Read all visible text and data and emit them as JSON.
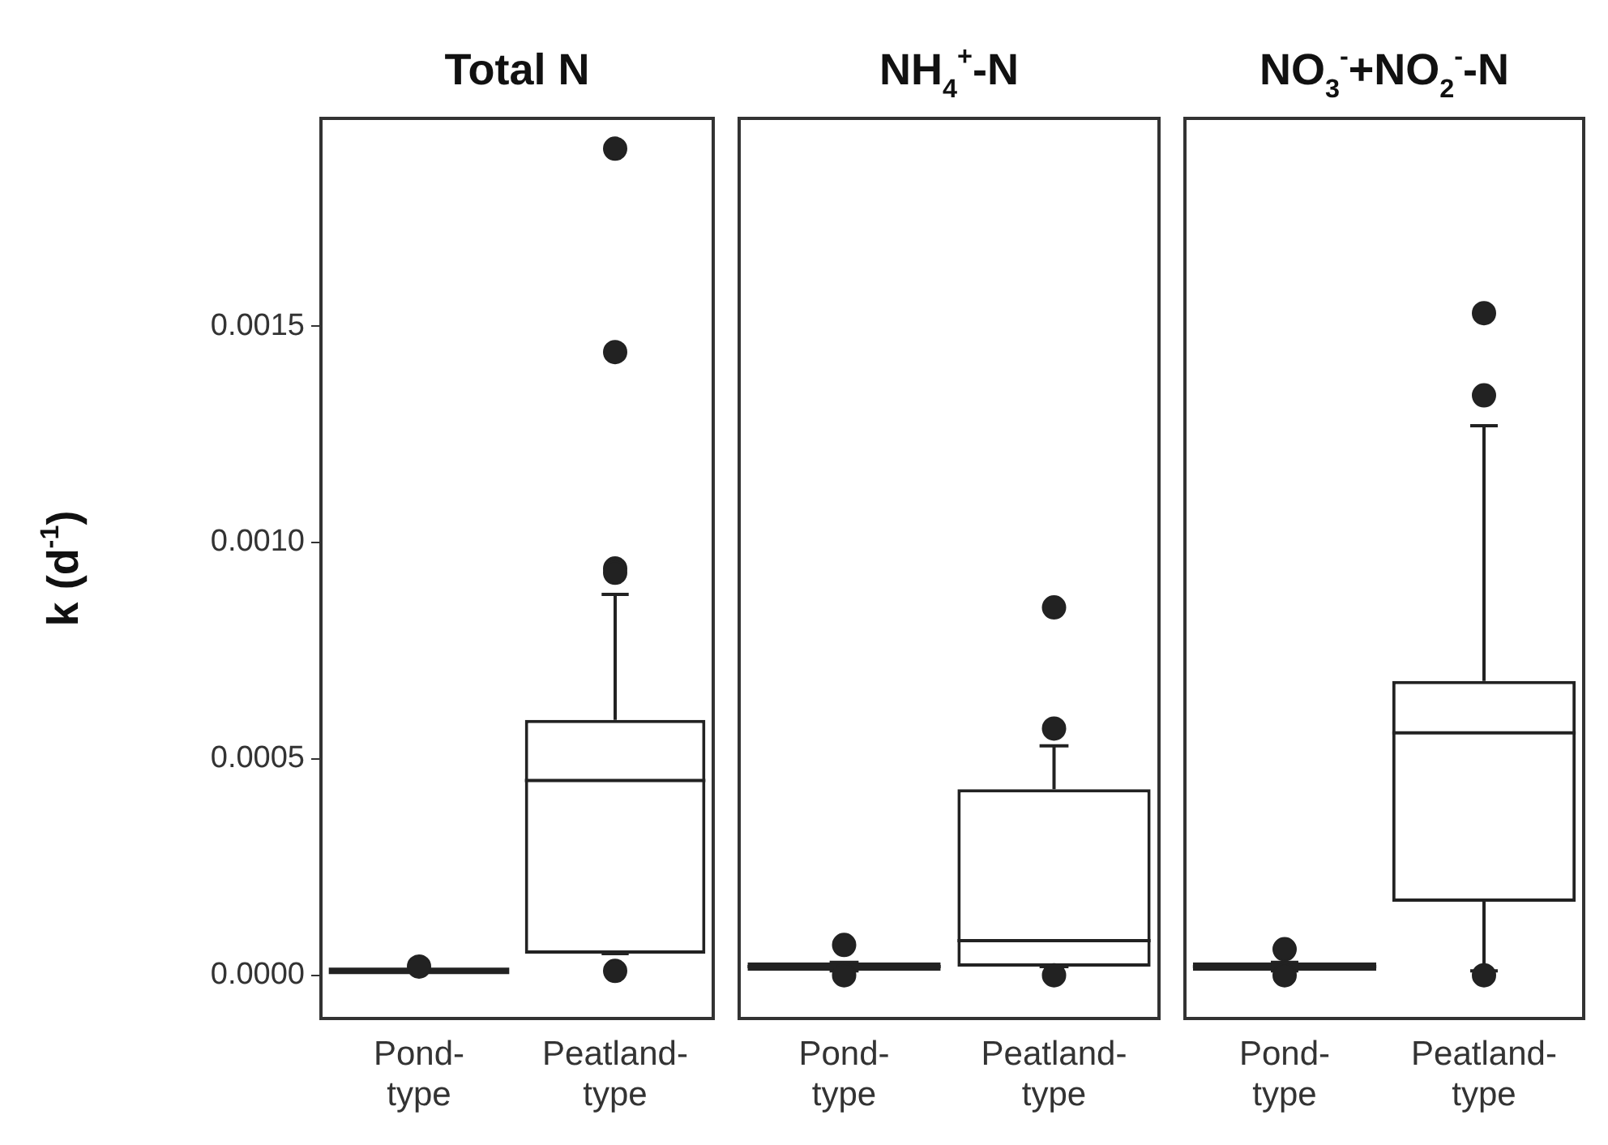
{
  "chart_data": [
    {
      "type": "box",
      "title": "Total N",
      "ylabel": "k (d$^{-1}$)",
      "categories": [
        "Pond-type",
        "Peatland-type"
      ],
      "series": [
        {
          "color": "#222222",
          "boxes": [
            {
              "low": 1e-05,
              "q1": 1e-05,
              "median": 1e-05,
              "q3": 1e-05,
              "high": 1e-05,
              "outliers": [
                2e-05
              ]
            },
            {
              "low": 5e-05,
              "q1": 5e-05,
              "median": 0.00045,
              "q3": 0.00059,
              "high": 0.00088,
              "outliers": [
                0.00191,
                0.00144,
                0.00094,
                0.00093,
                1e-05
              ]
            }
          ]
        }
      ],
      "ylim": [
        -0.0001,
        0.00198
      ],
      "yticks": [
        {
          "value": 0,
          "label": "0.0000"
        },
        {
          "value": 0.0005,
          "label": "0.0005"
        },
        {
          "value": 0.001,
          "label": "0.0010"
        },
        {
          "value": 0.0015,
          "label": "0.0015"
        }
      ],
      "grid": false
    },
    {
      "type": "box",
      "title": "NH$_{4}$$^{+}$-N",
      "categories": [
        "Pond-type",
        "Peatland-type"
      ],
      "series": [
        {
          "color": "#222222",
          "boxes": [
            {
              "low": 1e-05,
              "q1": 1e-05,
              "median": 2e-05,
              "q3": 3e-05,
              "high": 3e-05,
              "outliers": [
                7e-05,
                0
              ]
            },
            {
              "low": 2e-05,
              "q1": 2e-05,
              "median": 8e-05,
              "q3": 0.00043,
              "high": 0.00053,
              "outliers": [
                0.00085,
                0.00057,
                0
              ]
            }
          ]
        }
      ],
      "ylim": [
        -0.0001,
        0.00198
      ],
      "tick_labels": "x",
      "grid": false
    },
    {
      "type": "box",
      "title": "NO$_{3}$$^{-}$+NO$_{2}$$^{-}$-N",
      "categories": [
        "Pond-type",
        "Peatland-type"
      ],
      "series": [
        {
          "color": "#222222",
          "boxes": [
            {
              "low": 1e-05,
              "q1": 1e-05,
              "median": 2e-05,
              "q3": 3e-05,
              "high": 3e-05,
              "outliers": [
                6e-05,
                0
              ]
            },
            {
              "low": 1e-05,
              "q1": 0.00017,
              "median": 0.00056,
              "q3": 0.00068,
              "high": 0.00127,
              "outliers": [
                0.00153,
                0.00134,
                0
              ]
            }
          ]
        }
      ],
      "ylim": [
        -0.0001,
        0.00198
      ],
      "tick_labels": "x",
      "grid": false
    }
  ]
}
